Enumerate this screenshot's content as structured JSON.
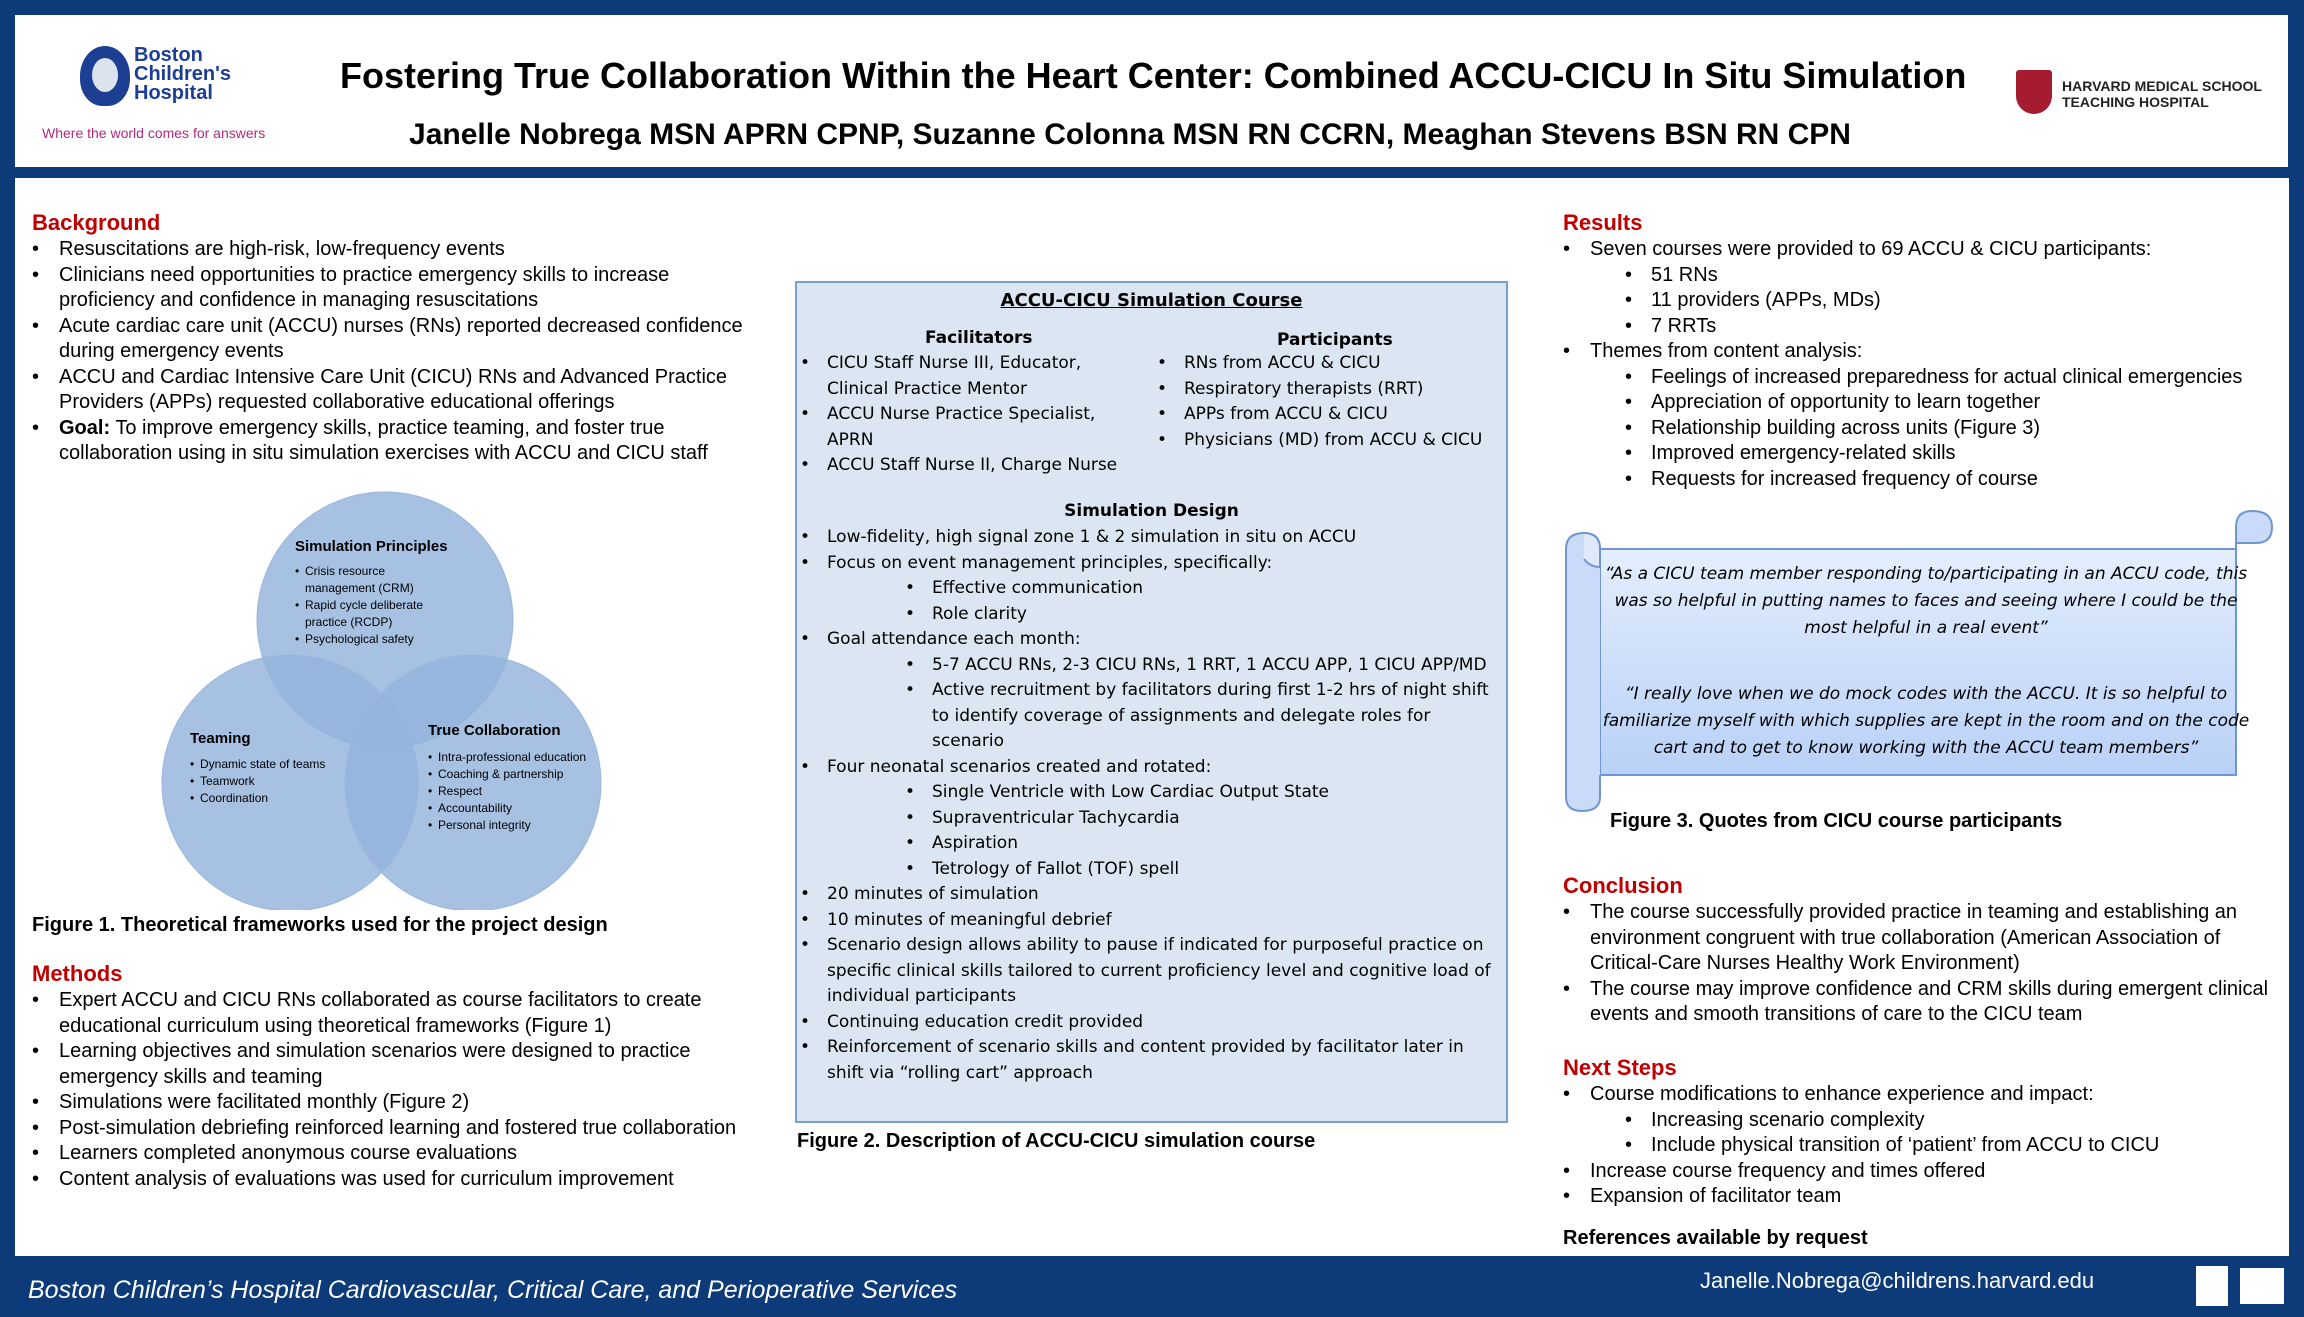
{
  "header": {
    "title": "Fostering True Collaboration Within the Heart Center: Combined ACCU-CICU In Situ Simulation",
    "authors": "Janelle Nobrega MSN APRN CPNP, Suzanne Colonna MSN RN CCRN, Meaghan Stevens BSN RN CPN",
    "bch_logo_lines": [
      "Boston",
      "Children's",
      "Hospital"
    ],
    "bch_tagline": "Where the world comes for answers",
    "hms_logo_lines": [
      "HARVARD MEDICAL SCHOOL",
      "TEACHING HOSPITAL"
    ]
  },
  "background": {
    "title": "Background",
    "items": [
      "Resuscitations are high-risk, low-frequency events",
      "Clinicians need opportunities to practice emergency skills to increase proficiency and confidence in managing resuscitations",
      "Acute cardiac care unit (ACCU) nurses (RNs) reported decreased confidence during emergency events",
      "ACCU and Cardiac Intensive Care Unit (CICU) RNs and Advanced Practice Providers (APPs) requested collaborative educational offerings"
    ],
    "goal_label": "Goal:",
    "goal_text": " To improve emergency skills, practice teaming, and foster true collaboration using in situ simulation exercises with ACCU and CICU staff"
  },
  "venn": {
    "sim_title": "Simulation Principles",
    "sim_items": [
      "Crisis resource management (CRM)",
      "Rapid cycle deliberate practice (RCDP)",
      "Psychological safety"
    ],
    "team_title": "Teaming",
    "team_items": [
      "Dynamic state of teams",
      "Teamwork",
      "Coordination"
    ],
    "tc_title": "True Collaboration",
    "tc_items": [
      "Intra-professional education",
      "Coaching & partnership",
      "Respect",
      "Accountability",
      "Personal integrity"
    ],
    "caption": "Figure 1. Theoretical frameworks used for the project design"
  },
  "methods": {
    "title": "Methods",
    "items": [
      "Expert ACCU and CICU RNs collaborated as course facilitators to create educational curriculum using theoretical frameworks (Figure 1)",
      "Learning objectives and simulation scenarios were designed to practice emergency skills and teaming",
      "Simulations were facilitated monthly (Figure 2)",
      "Post-simulation debriefing reinforced learning and fostered true collaboration",
      "Learners completed anonymous course evaluations",
      "Content analysis of evaluations was used for curriculum improvement"
    ]
  },
  "course": {
    "title": "ACCU-CICU Simulation Course",
    "facilitators_title": "Facilitators",
    "facilitators": [
      "CICU Staff Nurse III, Educator, Clinical Practice Mentor",
      "ACCU Nurse Practice Specialist, APRN",
      "ACCU Staff Nurse II, Charge Nurse"
    ],
    "participants_title": "Participants",
    "participants": [
      "RNs from ACCU & CICU",
      "Respiratory therapists (RRT)",
      "APPs from ACCU & CICU",
      "Physicians (MD) from ACCU & CICU"
    ],
    "design_title": "Simulation Design",
    "design": [
      "Low-fidelity, high signal zone 1 & 2 simulation in situ on ACCU",
      "Focus on event management principles, specifically:",
      "Effective communication",
      "Role clarity",
      "Goal attendance each month:",
      "5-7 ACCU RNs, 2-3 CICU RNs, 1 RRT, 1 ACCU APP, 1 CICU APP/MD",
      "Active recruitment by facilitators during first 1-2 hrs of night shift to identify coverage of assignments and delegate roles for scenario",
      "Four neonatal scenarios created and rotated:",
      "Single Ventricle with Low Cardiac Output State",
      "Supraventricular Tachycardia",
      "Aspiration",
      "Tetrology of Fallot (TOF) spell",
      "20 minutes of simulation",
      "10 minutes of meaningful debrief",
      "Scenario design allows ability to pause if indicated for purposeful practice on specific clinical skills tailored to current proficiency level and cognitive load of individual participants",
      "Continuing education credit provided",
      "Reinforcement of scenario skills and content provided by facilitator later in shift via “rolling cart” approach"
    ],
    "caption": "Figure 2. Description of ACCU-CICU simulation course"
  },
  "results": {
    "title": "Results",
    "items": [
      "Seven courses were provided to 69 ACCU & CICU participants:",
      "51 RNs",
      "11 providers (APPs, MDs)",
      "7 RRTs",
      "Themes from content analysis:",
      "Feelings of increased preparedness for actual clinical emergencies",
      "Appreciation of opportunity to learn together",
      "Relationship building across units (Figure 3)",
      "Improved emergency-related skills",
      "Requests for increased frequency of course"
    ],
    "quote1": "“As a CICU team member responding to/participating in an ACCU code, this was so helpful in putting names to faces and seeing where I could be the most helpful in a real event”",
    "quote2": "“I really love when we do mock codes with the ACCU.  It is so helpful to familiarize myself with which supplies are kept in the room and on the code cart and to get to know working with the ACCU team members”",
    "caption": "Figure 3. Quotes from CICU course participants"
  },
  "conclusion": {
    "title": "Conclusion",
    "items": [
      "The course successfully provided practice in teaming and establishing an environment congruent with true collaboration (American Association of Critical-Care Nurses Healthy Work Environment)",
      "The course may improve confidence and CRM skills during emergent clinical events and smooth transitions of care to the CICU team"
    ]
  },
  "next_steps": {
    "title": "Next Steps",
    "items": [
      "Course modifications to enhance experience and impact:",
      "Increasing scenario complexity",
      "Include physical transition of ‘patient’ from ACCU to CICU",
      "Increase course frequency and times offered",
      "Expansion of facilitator team"
    ]
  },
  "references": "References available by request",
  "footer": {
    "left": "Boston Children’s Hospital Cardiovascular, Critical Care, and Perioperative Services",
    "right": "Janelle.Nobrega@childrens.harvard.edu"
  },
  "colors": {
    "frame": "#0d3a78",
    "section_title": "#c00000",
    "venn_fill": "#94b3dc",
    "course_box": "#dce6f2",
    "scroll": "#cfe0fb"
  }
}
